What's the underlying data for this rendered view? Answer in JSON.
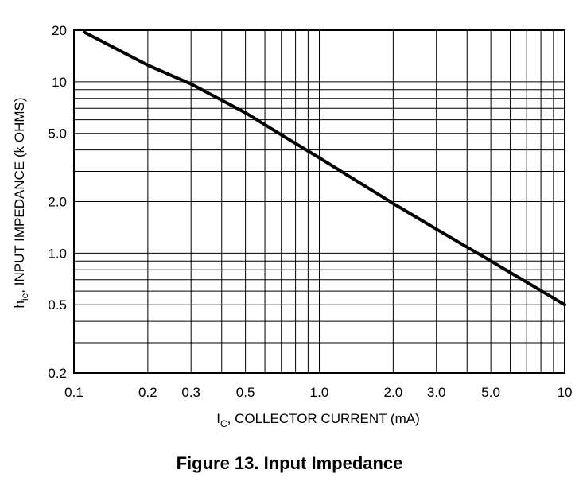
{
  "chart_data": {
    "type": "line",
    "xscale": "log",
    "yscale": "log",
    "xlim": [
      0.1,
      10
    ],
    "ylim": [
      0.2,
      20
    ],
    "x_ticks": [
      {
        "value": 0.1,
        "label": "0.1"
      },
      {
        "value": 0.2,
        "label": "0.2"
      },
      {
        "value": 0.3,
        "label": "0.3"
      },
      {
        "value": 0.5,
        "label": "0.5"
      },
      {
        "value": 1.0,
        "label": "1.0"
      },
      {
        "value": 2.0,
        "label": "2.0"
      },
      {
        "value": 3.0,
        "label": "3.0"
      },
      {
        "value": 5.0,
        "label": "5.0"
      },
      {
        "value": 10,
        "label": "10"
      }
    ],
    "y_ticks": [
      {
        "value": 0.2,
        "label": "0.2"
      },
      {
        "value": 0.5,
        "label": "0.5"
      },
      {
        "value": 1.0,
        "label": "1.0"
      },
      {
        "value": 2.0,
        "label": "2.0"
      },
      {
        "value": 5.0,
        "label": "5.0"
      },
      {
        "value": 10,
        "label": "10"
      },
      {
        "value": 20,
        "label": "20"
      }
    ],
    "xlabel": {
      "main": "I",
      "sub": "C",
      "rest": ", COLLECTOR CURRENT (mA)"
    },
    "ylabel": {
      "main": "h",
      "sub": "ie",
      "rest": ", INPUT IMPEDANCE (k OHMS)"
    },
    "grid": true,
    "series": [
      {
        "x": [
          0.11,
          0.2,
          0.3,
          0.5,
          0.7,
          1.0,
          2.0,
          3.0,
          5.0,
          10
        ],
        "y": [
          19.5,
          12.5,
          9.7,
          6.6,
          4.9,
          3.6,
          1.95,
          1.38,
          0.9,
          0.5
        ]
      }
    ]
  },
  "caption": "Figure 13. Input Impedance"
}
